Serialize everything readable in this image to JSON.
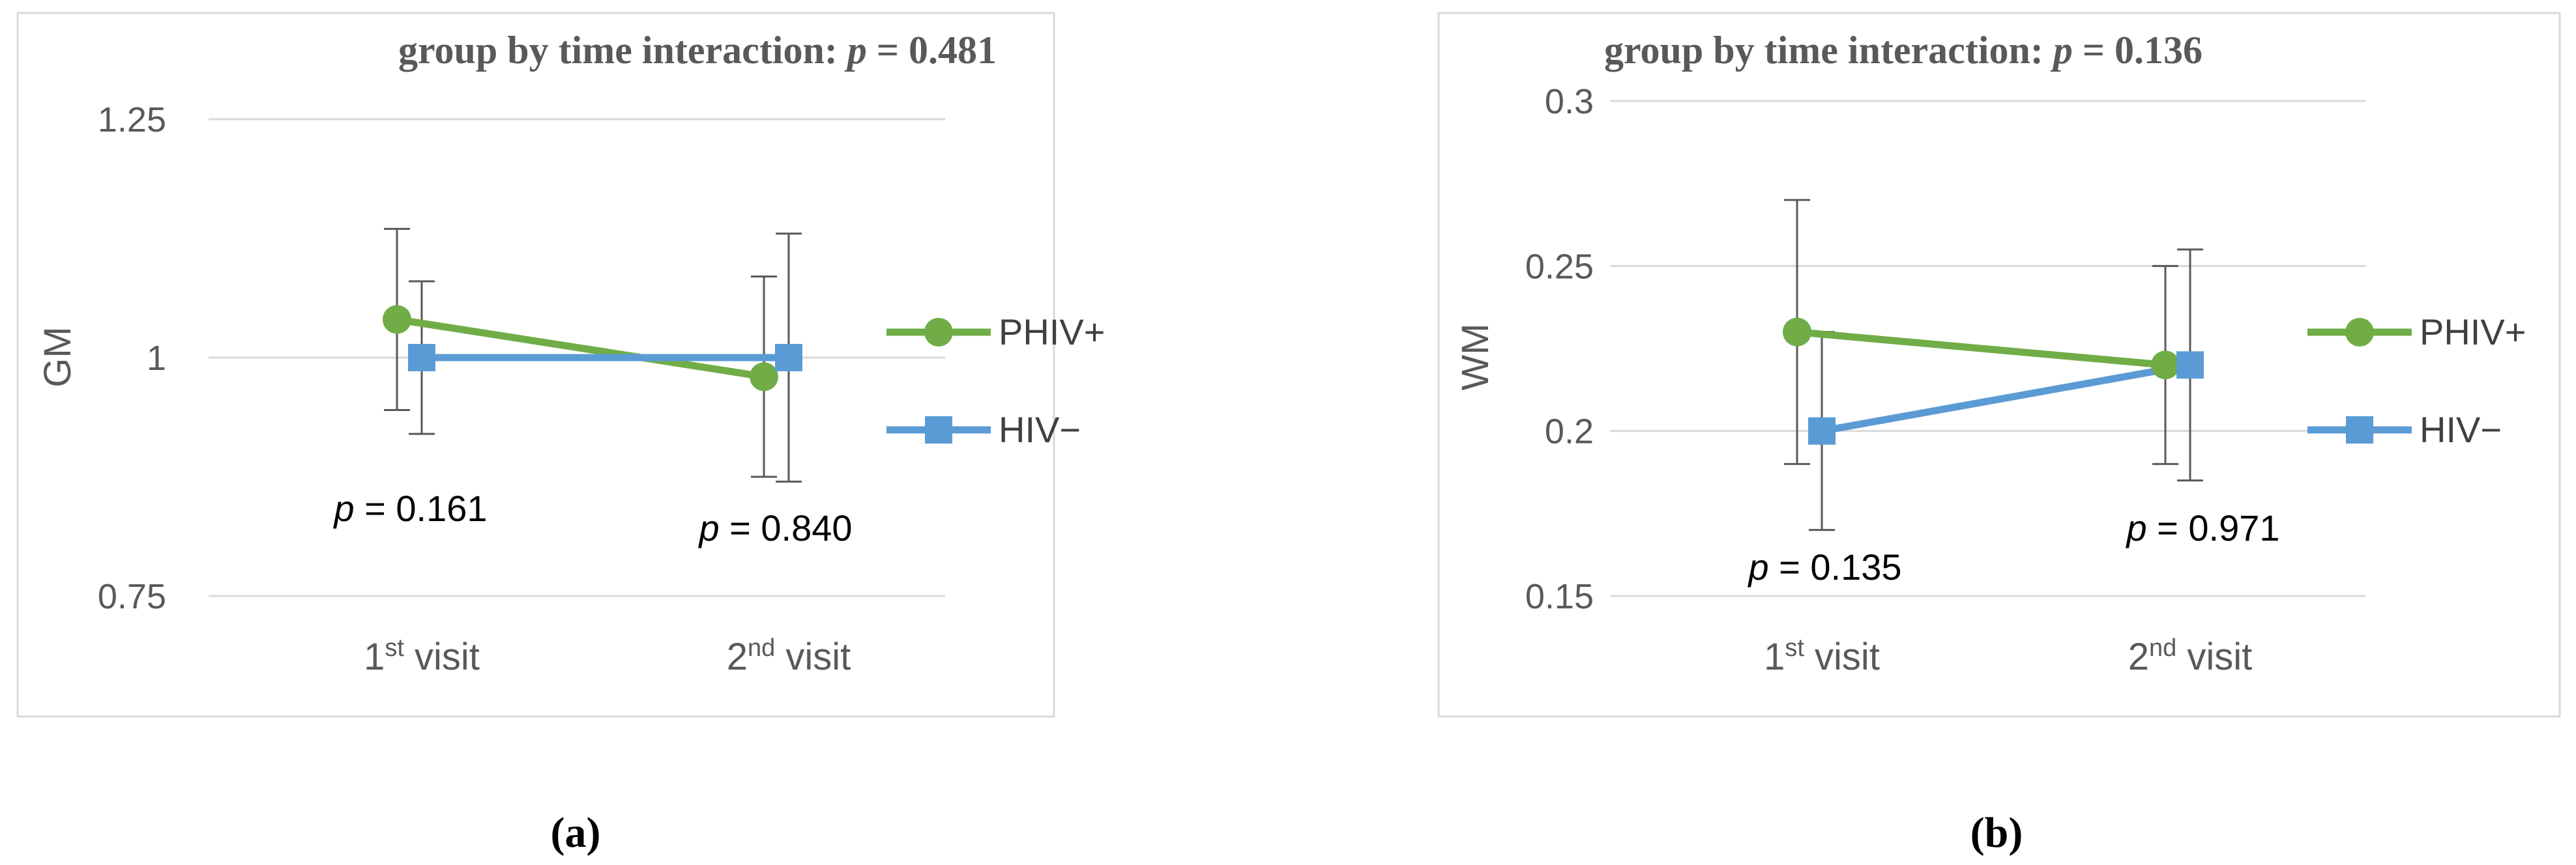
{
  "chart_data": [
    {
      "panel_label": "(a)",
      "type": "line",
      "title": "group by time interaction: ",
      "title_p_symbol": "p",
      "title_p_value": " = 0.481",
      "ylabel": "GM",
      "ylim": [
        0.75,
        1.25
      ],
      "yticks": [
        "0.75",
        "1",
        "1.25"
      ],
      "grid": true,
      "legend_position": "right",
      "categories": [
        {
          "base": "1",
          "sup": "st",
          "rest": " visit"
        },
        {
          "base": "2",
          "sup": "nd",
          "rest": " visit"
        }
      ],
      "series": [
        {
          "name": "PHIV+",
          "color": "#70ad47",
          "marker": "circle",
          "values": [
            1.04,
            0.98
          ],
          "err_low": [
            0.945,
            0.875
          ],
          "err_high": [
            1.135,
            1.085
          ]
        },
        {
          "name": "HIV−",
          "color": "#5b9bd5",
          "marker": "square",
          "values": [
            1.0,
            1.0
          ],
          "err_low": [
            0.92,
            0.87
          ],
          "err_high": [
            1.08,
            1.13
          ]
        }
      ],
      "annotations": [
        {
          "prefix": "p",
          "text": " = 0.161"
        },
        {
          "prefix": "p",
          "text": " = 0.840"
        }
      ]
    },
    {
      "panel_label": "(b)",
      "type": "line",
      "title": "group by time interaction: ",
      "title_p_symbol": "p",
      "title_p_value": " = 0.136",
      "ylabel": "WM",
      "ylim": [
        0.15,
        0.3
      ],
      "yticks": [
        "0.15",
        "0.2",
        "0.25",
        "0.3"
      ],
      "grid": true,
      "legend_position": "right",
      "categories": [
        {
          "base": "1",
          "sup": "st",
          "rest": " visit"
        },
        {
          "base": "2",
          "sup": "nd",
          "rest": " visit"
        }
      ],
      "series": [
        {
          "name": "PHIV+",
          "color": "#70ad47",
          "marker": "circle",
          "values": [
            0.23,
            0.22
          ],
          "err_low": [
            0.19,
            0.19
          ],
          "err_high": [
            0.27,
            0.25
          ]
        },
        {
          "name": "HIV−",
          "color": "#5b9bd5",
          "marker": "square",
          "values": [
            0.2,
            0.22
          ],
          "err_low": [
            0.17,
            0.185
          ],
          "err_high": [
            0.23,
            0.255
          ]
        }
      ],
      "annotations": [
        {
          "prefix": "p",
          "text": " = 0.135"
        },
        {
          "prefix": "p",
          "text": " = 0.971"
        }
      ]
    }
  ]
}
